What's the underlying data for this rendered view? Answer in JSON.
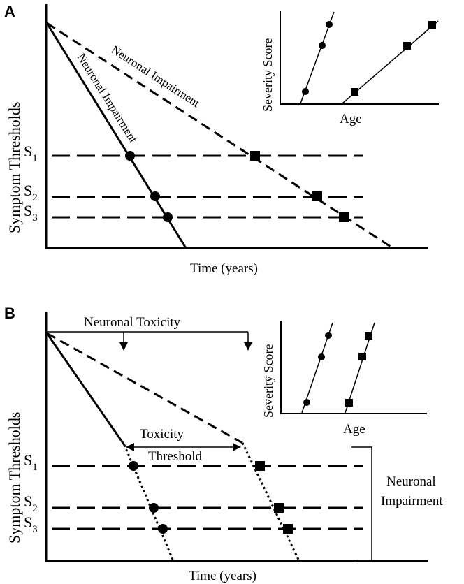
{
  "panel_a": {
    "letter": "A",
    "y_axis_label": "Symptom Thresholds",
    "x_axis_label": "Time (years)",
    "threshold_labels": [
      {
        "base": "S",
        "sub": "1"
      },
      {
        "base": "S",
        "sub": "2"
      },
      {
        "base": "S",
        "sub": "3"
      }
    ],
    "solid_line_label": "Neuronal Impairment",
    "dashed_line_label": "Neuronal Impairment",
    "inset": {
      "y_label": "Severity Score",
      "x_label": "Age"
    }
  },
  "panel_b": {
    "letter": "B",
    "y_axis_label": "Symptom Thresholds",
    "x_axis_label": "Time (years)",
    "threshold_labels": [
      {
        "base": "S",
        "sub": "1"
      },
      {
        "base": "S",
        "sub": "2"
      },
      {
        "base": "S",
        "sub": "3"
      }
    ],
    "toxicity_label": "Neuronal Toxicity",
    "toxicity_threshold_label_1": "Toxicity",
    "toxicity_threshold_label_2": "Threshold",
    "bracket_label_1": "Neuronal",
    "bracket_label_2": "Impairment",
    "inset": {
      "y_label": "Severity Score",
      "x_label": "Age"
    }
  }
}
